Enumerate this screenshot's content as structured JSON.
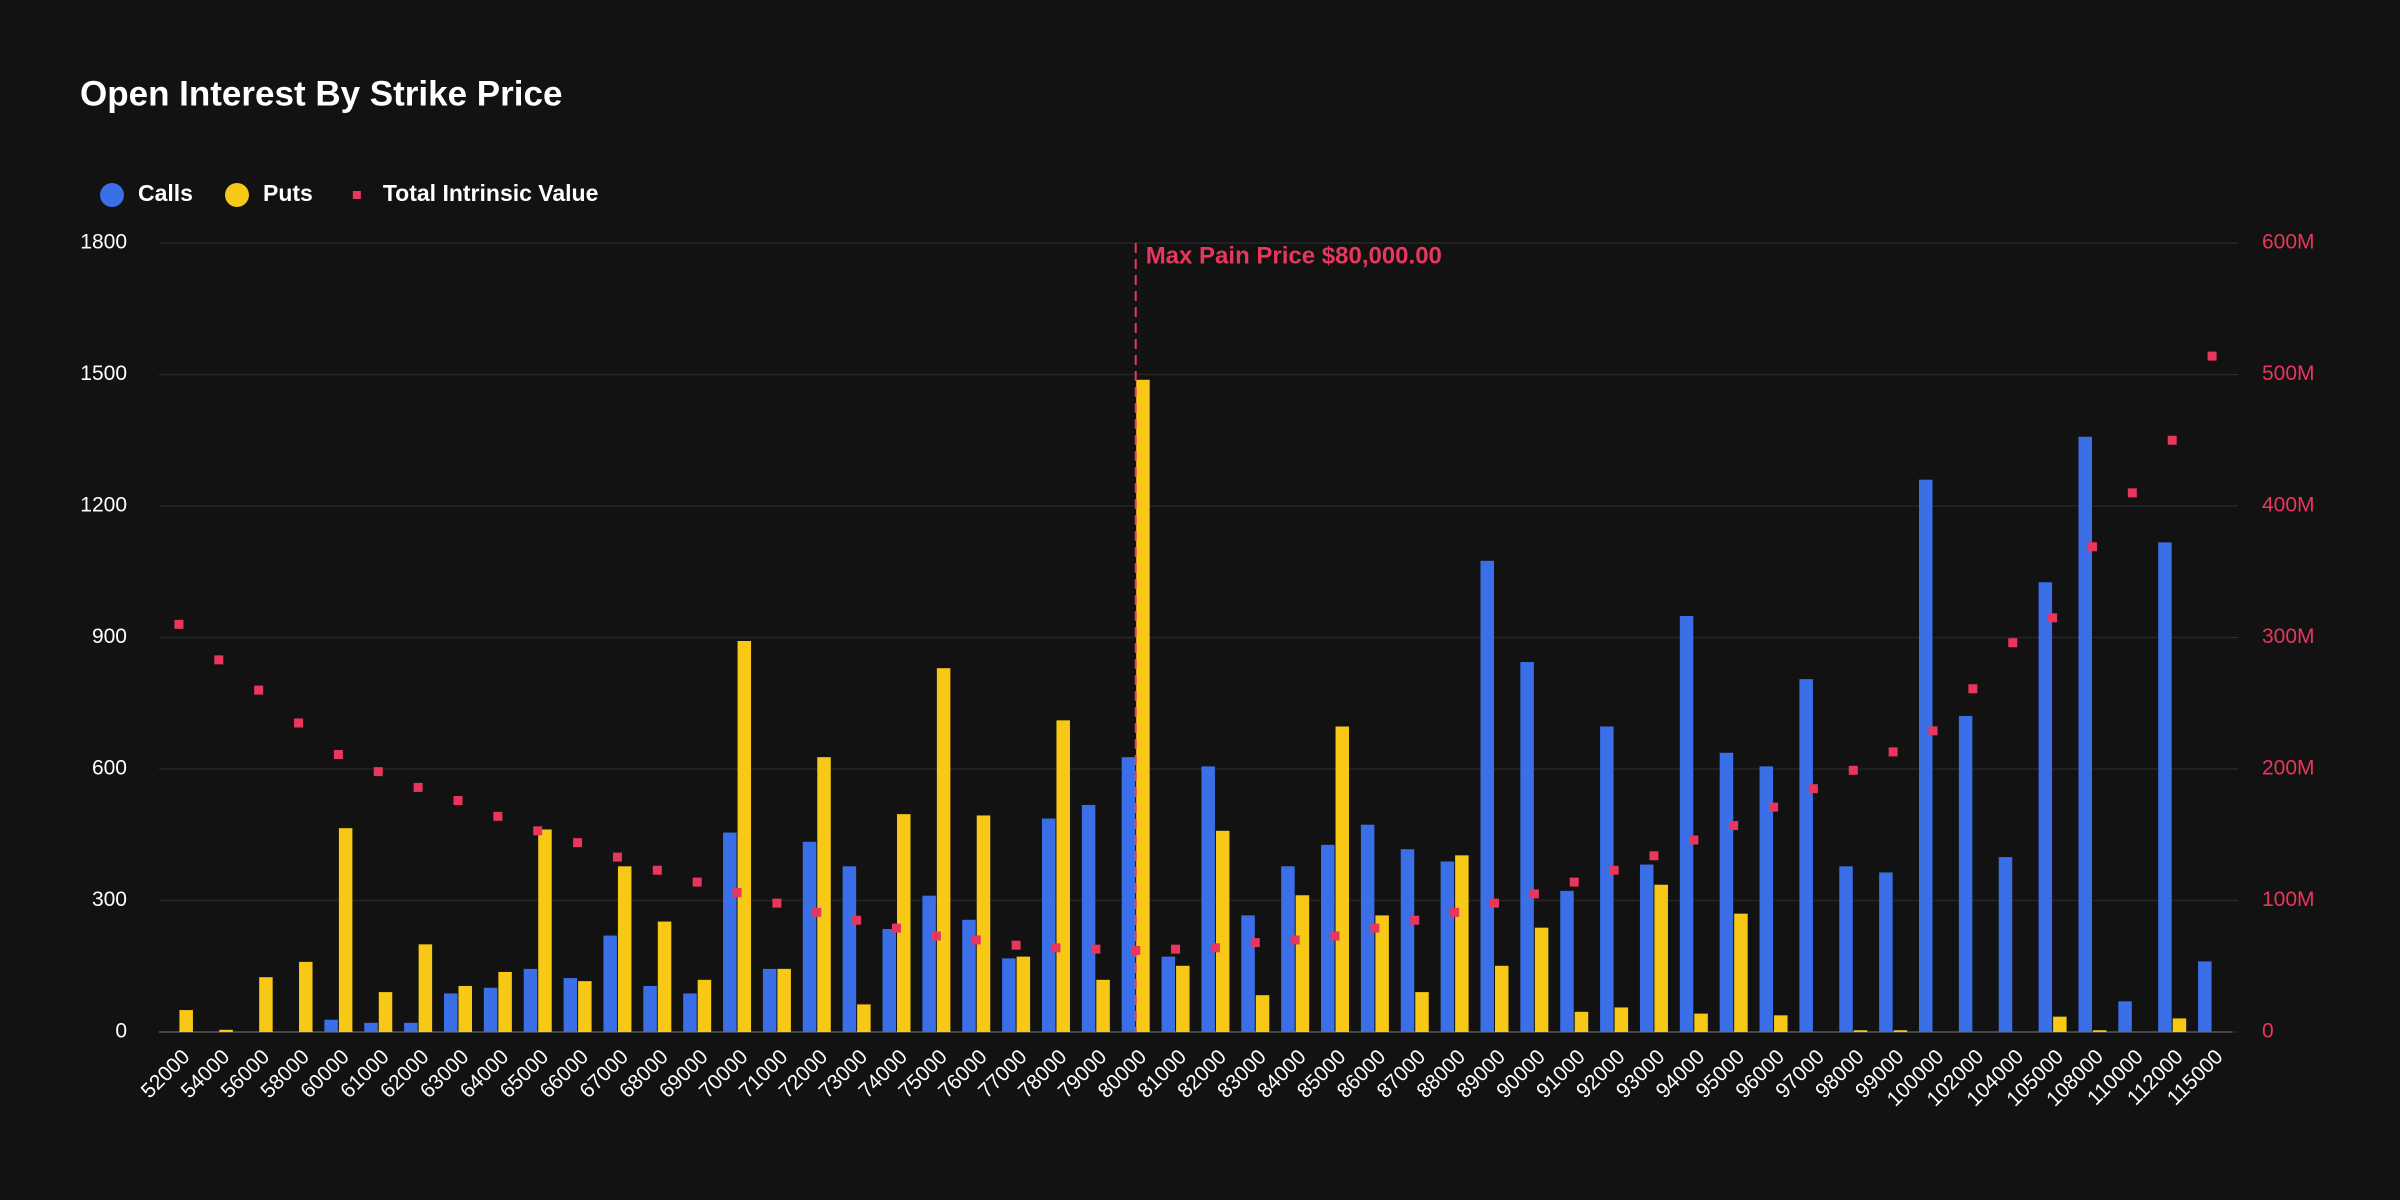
{
  "chart_data": {
    "type": "bar",
    "title": "Open Interest By Strike Price",
    "categories": [
      "52000",
      "54000",
      "56000",
      "58000",
      "60000",
      "61000",
      "62000",
      "63000",
      "64000",
      "65000",
      "66000",
      "67000",
      "68000",
      "69000",
      "70000",
      "71000",
      "72000",
      "73000",
      "74000",
      "75000",
      "76000",
      "77000",
      "78000",
      "79000",
      "80000",
      "81000",
      "82000",
      "83000",
      "84000",
      "85000",
      "86000",
      "87000",
      "88000",
      "89000",
      "90000",
      "91000",
      "92000",
      "93000",
      "94000",
      "95000",
      "96000",
      "97000",
      "98000",
      "99000",
      "100000",
      "102000",
      "104000",
      "105000",
      "108000",
      "110000",
      "112000",
      "115000"
    ],
    "series": [
      {
        "name": "Calls",
        "type": "bar",
        "color": "#3a6fe8",
        "values": [
          0,
          0,
          0,
          0,
          28,
          21,
          21,
          88,
          101,
          144,
          123,
          220,
          105,
          88,
          455,
          144,
          434,
          378,
          235,
          311,
          256,
          168,
          487,
          518,
          627,
          172,
          606,
          266,
          378,
          427,
          473,
          417,
          389,
          1075,
          844,
          322,
          697,
          382,
          949,
          637,
          606,
          805,
          378,
          364,
          1260,
          721,
          399,
          1026,
          1358,
          70,
          1117,
          161
        ]
      },
      {
        "name": "Puts",
        "type": "bar",
        "color": "#f7c816",
        "values": [
          50,
          5,
          125,
          160,
          465,
          91,
          200,
          105,
          137,
          462,
          116,
          378,
          252,
          119,
          892,
          144,
          627,
          63,
          497,
          830,
          494,
          172,
          711,
          119,
          1488,
          151,
          459,
          84,
          312,
          697,
          266,
          91,
          403,
          151,
          238,
          46,
          56,
          336,
          42,
          270,
          38,
          0,
          4,
          4,
          0,
          0,
          0,
          35,
          4,
          0,
          31,
          0
        ]
      },
      {
        "name": "Total Intrinsic Value",
        "type": "scatter",
        "axis": "y2",
        "color": "#e8365d",
        "values": [
          310000000,
          283000000,
          260000000,
          235000000,
          211000000,
          198000000,
          186000000,
          176000000,
          164000000,
          153000000,
          144000000,
          133000000,
          123000000,
          114000000,
          106000000,
          98000000,
          91000000,
          85000000,
          79000000,
          73000000,
          70000000,
          66000000,
          64000000,
          63000000,
          62000000,
          63000000,
          64000000,
          68000000,
          70000000,
          73000000,
          79000000,
          85000000,
          91000000,
          98000000,
          105000000,
          114000000,
          123000000,
          134000000,
          146000000,
          157000000,
          171000000,
          185000000,
          199000000,
          213000000,
          229000000,
          261000000,
          296000000,
          315000000,
          369000000,
          410000000,
          450000000,
          514000000
        ]
      }
    ],
    "ylim": [
      0,
      1800
    ],
    "yticks": [
      0,
      300,
      600,
      900,
      1200,
      1500,
      1800
    ],
    "y2lim": [
      0,
      600000000
    ],
    "y2ticks": [
      0,
      {
        "value": 100000000,
        "label": "100M"
      },
      {
        "value": 200000000,
        "label": "200M"
      },
      {
        "value": 300000000,
        "label": "300M"
      },
      {
        "value": 400000000,
        "label": "400M"
      },
      {
        "value": 500000000,
        "label": "500M"
      },
      {
        "value": 600000000,
        "label": "600M"
      }
    ],
    "grid": true,
    "annotation": {
      "text": "Max Pain Price $80,000.00",
      "x": "80000",
      "color": "#e8365d"
    }
  }
}
